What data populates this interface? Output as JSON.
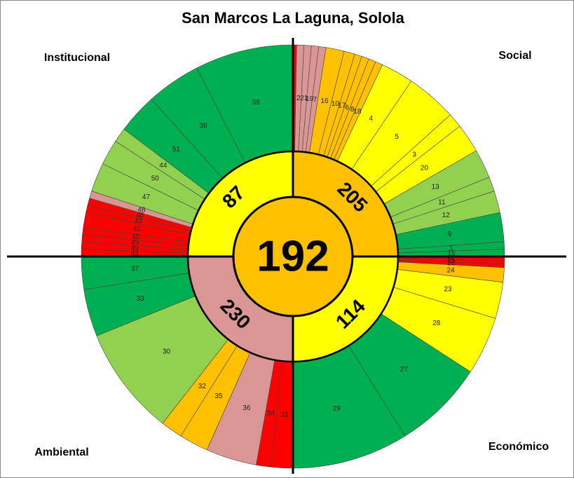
{
  "chart_data": {
    "type": "sunburst",
    "title": "San Marcos La Laguna, Solola",
    "center": {
      "value": 192,
      "color": "#ffc000"
    },
    "groups": [
      {
        "name": "Social",
        "value": 205,
        "color": "#ffc000",
        "segments": [
          {
            "label": null,
            "weight": 1,
            "color": "#ff0000"
          },
          {
            "label": "2",
            "weight": 2,
            "color": "#da9694"
          },
          {
            "label": "21",
            "weight": 2,
            "color": "#da9694"
          },
          {
            "label": "19",
            "weight": 2,
            "color": "#da9694"
          },
          {
            "label": "7",
            "weight": 2,
            "color": "#da9694"
          },
          {
            "label": "16",
            "weight": 5,
            "color": "#ffc000"
          },
          {
            "label": "10",
            "weight": 3,
            "color": "#ffc000"
          },
          {
            "label": "17",
            "weight": 2,
            "color": "#ffc000"
          },
          {
            "label": "6",
            "weight": 2,
            "color": "#ffc000"
          },
          {
            "label": "8",
            "weight": 2,
            "color": "#ffc000"
          },
          {
            "label": "18",
            "weight": 2,
            "color": "#ffc000"
          },
          {
            "label": "4",
            "weight": 9,
            "color": "#ffff00"
          },
          {
            "label": "5",
            "weight": 14,
            "color": "#ffff00"
          },
          {
            "label": "3",
            "weight": 4,
            "color": "#ffff00"
          },
          {
            "label": "20",
            "weight": 8,
            "color": "#ffff00"
          },
          {
            "label": "13",
            "weight": 8,
            "color": "#92d050"
          },
          {
            "label": "11",
            "weight": 4,
            "color": "#92d050"
          },
          {
            "label": "12",
            "weight": 6,
            "color": "#92d050"
          },
          {
            "label": "9",
            "weight": 8,
            "color": "#00b050"
          },
          {
            "label": "1",
            "weight": 2,
            "color": "#00b050"
          },
          {
            "label": "15",
            "weight": 2,
            "color": "#00b050"
          }
        ]
      },
      {
        "name": "Económico",
        "value": 114,
        "color": "#ffff00",
        "segments": [
          {
            "label": "22",
            "weight": 1,
            "color": "#ff0000"
          },
          {
            "label": "25",
            "weight": 1,
            "color": "#ff0000"
          },
          {
            "label": "26",
            "weight": 1,
            "color": "#ff0000"
          },
          {
            "label": "24",
            "weight": 4,
            "color": "#ffc000"
          },
          {
            "label": "23",
            "weight": 10,
            "color": "#ffff00"
          },
          {
            "label": "28",
            "weight": 16,
            "color": "#ffff00"
          },
          {
            "label": "27",
            "weight": 25,
            "color": "#00b050"
          },
          {
            "label": "29",
            "weight": 32,
            "color": "#00b050"
          }
        ]
      },
      {
        "name": "Ambiental",
        "value": 230,
        "color": "#da9694",
        "segments": [
          {
            "label": "31",
            "weight": 6,
            "color": "#ff0000"
          },
          {
            "label": "34",
            "weight": 4,
            "color": "#ff0000"
          },
          {
            "label": "36",
            "weight": 14,
            "color": "#da9694"
          },
          {
            "label": "35",
            "weight": 8,
            "color": "#ffc000"
          },
          {
            "label": "32",
            "weight": 6,
            "color": "#ffc000"
          },
          {
            "label": "30",
            "weight": 30,
            "color": "#92d050"
          },
          {
            "label": "33",
            "weight": 13,
            "color": "#00b050"
          },
          {
            "label": "37",
            "weight": 9,
            "color": "#00b050"
          }
        ]
      },
      {
        "name": "Institucional",
        "value": 87,
        "color": "#ffff00",
        "segments": [
          {
            "label": "43",
            "weight": 2,
            "color": "#ff0000"
          },
          {
            "label": "49",
            "weight": 2,
            "color": "#ff0000"
          },
          {
            "label": "45",
            "weight": 2,
            "color": "#ff0000"
          },
          {
            "label": "40",
            "weight": 2,
            "color": "#ff0000"
          },
          {
            "label": "41",
            "weight": 4,
            "color": "#ff0000"
          },
          {
            "label": "42",
            "weight": 2,
            "color": "#ff0000"
          },
          {
            "label": "46",
            "weight": 2,
            "color": "#ff0000"
          },
          {
            "label": "48",
            "weight": 2,
            "color": "#da9694"
          },
          {
            "label": "47",
            "weight": 8,
            "color": "#92d050"
          },
          {
            "label": "50",
            "weight": 7,
            "color": "#92d050"
          },
          {
            "label": "44",
            "weight": 4,
            "color": "#92d050"
          },
          {
            "label": "51",
            "weight": 11,
            "color": "#00b050"
          },
          {
            "label": "38",
            "weight": 15,
            "color": "#00b050"
          },
          {
            "label": "39",
            "weight": 27,
            "color": "#00b050"
          }
        ]
      }
    ]
  }
}
